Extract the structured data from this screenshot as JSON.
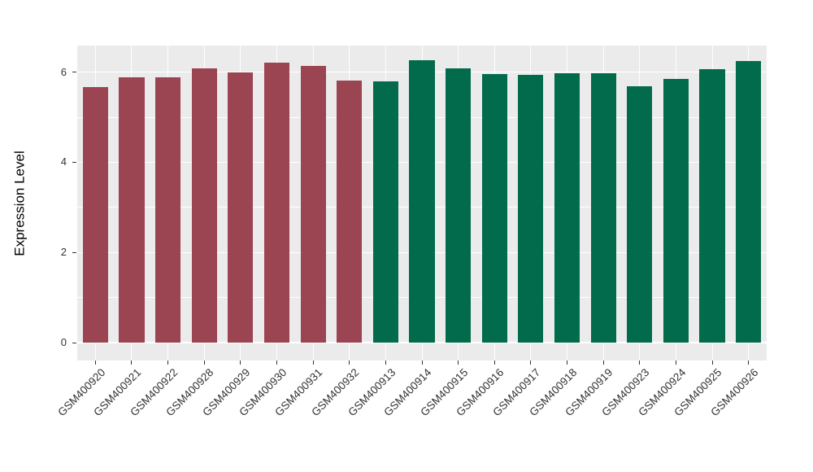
{
  "figure": {
    "background_color": "#FFFFFF",
    "panel_background_color": "#EBEBEB",
    "gridline_color": "#FFFFFF",
    "axis_text_color": "#333333"
  },
  "chart_data": {
    "type": "bar",
    "title": "",
    "xlabel": "",
    "ylabel": "Expression Level",
    "ylim": [
      0,
      6.6
    ],
    "y_ticks": [
      0,
      2,
      4,
      6
    ],
    "y_minor_gridlines": [
      1,
      3,
      5
    ],
    "grid": true,
    "legend": "none",
    "categories": [
      "GSM400920",
      "GSM400921",
      "GSM400922",
      "GSM400928",
      "GSM400929",
      "GSM400930",
      "GSM400931",
      "GSM400932",
      "GSM400913",
      "GSM400914",
      "GSM400915",
      "GSM400916",
      "GSM400917",
      "GSM400918",
      "GSM400919",
      "GSM400923",
      "GSM400924",
      "GSM400925",
      "GSM400926"
    ],
    "values": [
      5.67,
      5.88,
      5.88,
      6.09,
      6.0,
      6.21,
      6.13,
      5.82,
      5.8,
      6.26,
      6.09,
      5.96,
      5.94,
      5.97,
      5.97,
      5.68,
      5.85,
      6.06,
      6.24
    ],
    "groups": [
      "group1",
      "group1",
      "group1",
      "group1",
      "group1",
      "group1",
      "group1",
      "group1",
      "group2",
      "group2",
      "group2",
      "group2",
      "group2",
      "group2",
      "group2",
      "group2",
      "group2",
      "group2",
      "group2"
    ],
    "group_colors": {
      "group1": "#9B4452",
      "group2": "#026B4B"
    }
  }
}
